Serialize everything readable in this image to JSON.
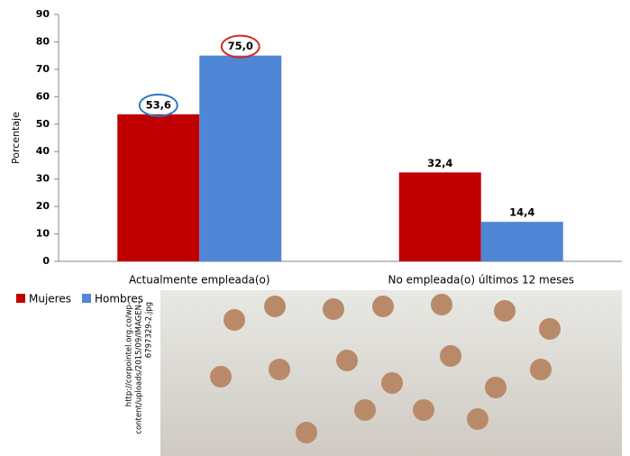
{
  "chart_data": {
    "type": "bar",
    "y_label": "Porcentaje",
    "categories": [
      "Actualmente empleada(o)",
      "No empleada(o) últimos 12 meses"
    ],
    "series": [
      {
        "name": "Mujeres",
        "color": "#c00000",
        "values": [
          53.6,
          32.4
        ],
        "value_labels": [
          "53,6",
          "32,4"
        ]
      },
      {
        "name": "Hombres",
        "color": "#4f86d6",
        "values": [
          75.0,
          14.4
        ],
        "value_labels": [
          "75,0",
          "14,4"
        ]
      }
    ],
    "ylim": [
      0,
      90
    ],
    "yticks": [
      0,
      10,
      20,
      30,
      40,
      50,
      60,
      70,
      80,
      90
    ],
    "grid": false
  },
  "photo": {
    "source_lines": [
      "http://corpointel.org.co/wp-",
      "content/uploads/2015/09/IMAGEN-",
      "6797329-2.jpg"
    ]
  }
}
